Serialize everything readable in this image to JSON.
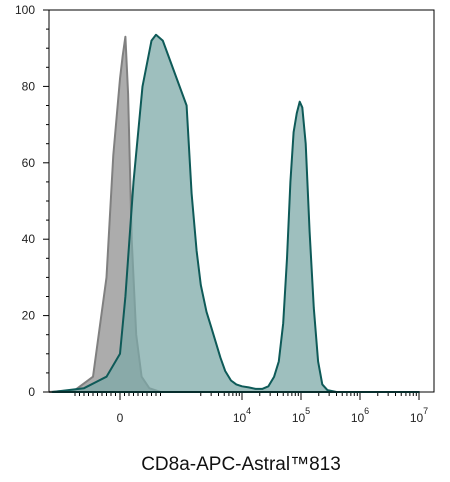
{
  "chart_data": {
    "type": "area",
    "title": "",
    "xlabel": "CD8a-APC-Astral™813",
    "ylabel": "",
    "x_scale": "biexponential",
    "ylim": [
      0,
      100
    ],
    "y_ticks": [
      0,
      20,
      40,
      60,
      80,
      100
    ],
    "x_tick_labels": [
      {
        "base": "0",
        "exp": ""
      },
      {
        "base": "10",
        "exp": "4"
      },
      {
        "base": "10",
        "exp": "5"
      },
      {
        "base": "10",
        "exp": "6"
      },
      {
        "base": "10",
        "exp": "7"
      }
    ],
    "grid": false,
    "legend": "none",
    "series": [
      {
        "color": "#808080",
        "fill": "#9e9e9e",
        "points": [
          [
            -2000,
            0
          ],
          [
            -1000,
            0.5
          ],
          [
            -600,
            4
          ],
          [
            -300,
            30
          ],
          [
            -150,
            62
          ],
          [
            0,
            82
          ],
          [
            60,
            88
          ],
          [
            120,
            93
          ],
          [
            180,
            78
          ],
          [
            260,
            40
          ],
          [
            360,
            15
          ],
          [
            480,
            4
          ],
          [
            650,
            1
          ],
          [
            900,
            0
          ],
          [
            2000,
            0
          ]
        ]
      },
      {
        "color": "#0e5a58",
        "fill": "#7eaaa8",
        "points": [
          [
            -1500,
            0
          ],
          [
            -800,
            1
          ],
          [
            -300,
            4
          ],
          [
            0,
            10
          ],
          [
            120,
            25
          ],
          [
            300,
            55
          ],
          [
            500,
            80
          ],
          [
            700,
            92
          ],
          [
            800,
            93.5
          ],
          [
            950,
            92
          ],
          [
            1150,
            75
          ],
          [
            1400,
            52
          ],
          [
            1700,
            37
          ],
          [
            2000,
            28
          ],
          [
            2500,
            21
          ],
          [
            3000,
            17
          ],
          [
            3600,
            13
          ],
          [
            4300,
            9
          ],
          [
            5200,
            5.5
          ],
          [
            6500,
            3
          ],
          [
            8000,
            2
          ],
          [
            10000,
            1.5
          ],
          [
            13000,
            1.2
          ],
          [
            17000,
            0.8
          ],
          [
            22000,
            0.8
          ],
          [
            28000,
            1.5
          ],
          [
            35000,
            4
          ],
          [
            42000,
            8
          ],
          [
            50000,
            18
          ],
          [
            58000,
            35
          ],
          [
            66000,
            55
          ],
          [
            75000,
            68
          ],
          [
            85000,
            73
          ],
          [
            95000,
            76
          ],
          [
            105000,
            74.5
          ],
          [
            120000,
            65
          ],
          [
            140000,
            42
          ],
          [
            165000,
            22
          ],
          [
            195000,
            8
          ],
          [
            230000,
            2
          ],
          [
            280000,
            0.5
          ],
          [
            400000,
            0
          ],
          [
            10000000,
            0
          ]
        ]
      }
    ]
  }
}
